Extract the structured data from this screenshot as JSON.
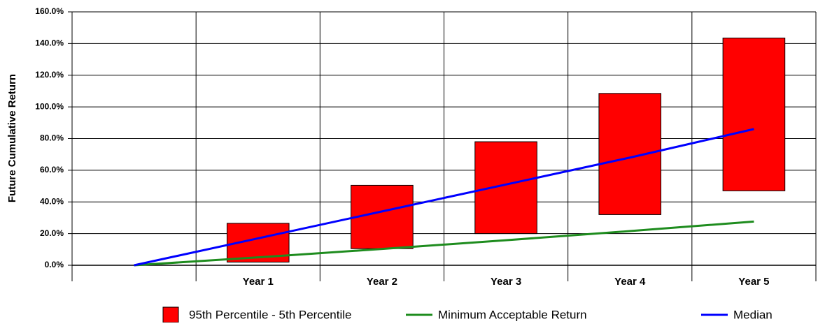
{
  "chart_data": {
    "type": "range-line",
    "y_label": "Future Cumulative Return",
    "categories": [
      null,
      "Year 1",
      "Year 2",
      "Year 3",
      "Year 4",
      "Year 5"
    ],
    "ylim": [
      0,
      160
    ],
    "yticks": [
      {
        "value": 0,
        "label": "0.0%"
      },
      {
        "value": 20,
        "label": "20.0%"
      },
      {
        "value": 40,
        "label": "40.0%"
      },
      {
        "value": 60,
        "label": "60.0%"
      },
      {
        "value": 80,
        "label": "80.0%"
      },
      {
        "value": 100,
        "label": "100.0%"
      },
      {
        "value": 120,
        "label": "120.0%"
      },
      {
        "value": 140,
        "label": "140.0%"
      },
      {
        "value": 160,
        "label": "160.0%"
      }
    ],
    "grid": true,
    "series": [
      {
        "name": "95th Percentile - 5th Percentile",
        "color": "#ff0000",
        "kind": "range",
        "high": [
          null,
          26.5,
          50.5,
          78,
          108.5,
          143.5
        ],
        "low": [
          null,
          2,
          10.5,
          20,
          32,
          47
        ]
      },
      {
        "name": "Minimum Acceptable Return",
        "color": "#1e8c1e",
        "kind": "line",
        "values": [
          0,
          5,
          10.3,
          15.8,
          21.6,
          27.6
        ]
      },
      {
        "name": "Median",
        "color": "#0000ff",
        "kind": "line",
        "values": [
          0,
          17,
          34,
          51,
          68,
          86
        ]
      }
    ]
  }
}
